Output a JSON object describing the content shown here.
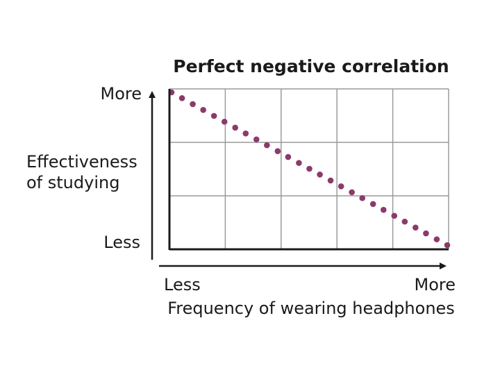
{
  "chart_data": {
    "type": "scatter",
    "title": "Perfect negative correlation",
    "xlabel": "Frequency of wearing headphones",
    "ylabel_lines": [
      "Effectiveness",
      "of studying"
    ],
    "x_tick_labels": [
      "Less",
      "More"
    ],
    "y_tick_labels": [
      "Less",
      "More"
    ],
    "xlim": [
      0,
      1
    ],
    "ylim": [
      0,
      1
    ],
    "grid": true,
    "grid_divisions": {
      "x": 5,
      "y": 3
    },
    "point_color": "#8b3a6b",
    "series": [
      {
        "name": "points",
        "x": [
          0.0,
          0.038,
          0.077,
          0.115,
          0.154,
          0.192,
          0.231,
          0.269,
          0.308,
          0.346,
          0.385,
          0.423,
          0.462,
          0.5,
          0.538,
          0.577,
          0.615,
          0.654,
          0.692,
          0.731,
          0.769,
          0.808,
          0.846,
          0.885,
          0.923,
          0.962,
          1.0
        ],
        "y": [
          1.0,
          0.962,
          0.923,
          0.885,
          0.846,
          0.808,
          0.769,
          0.731,
          0.692,
          0.654,
          0.615,
          0.577,
          0.538,
          0.5,
          0.462,
          0.423,
          0.385,
          0.346,
          0.308,
          0.269,
          0.231,
          0.192,
          0.154,
          0.115,
          0.077,
          0.038,
          0.0
        ]
      }
    ]
  }
}
